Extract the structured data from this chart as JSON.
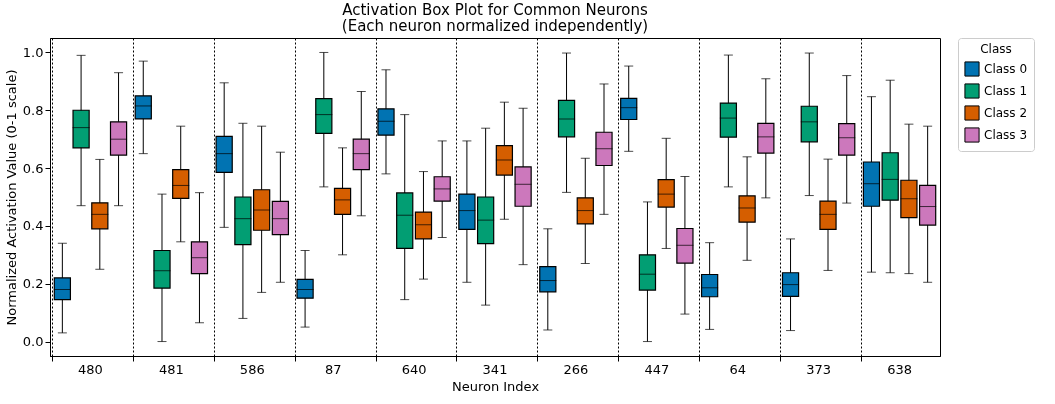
{
  "chart_data": {
    "type": "box",
    "title": "Activation Box Plot for Common Neurons",
    "subtitle": "(Each neuron normalized independently)",
    "xlabel": "Neuron Index",
    "ylabel": "Normalized Activation Value (0-1 scale)",
    "legend_title": "Class",
    "legend": "top right",
    "grid": "x",
    "ylim": [
      -0.05,
      1.05
    ],
    "yticks": [
      {
        "value": 0,
        "label": "0.0"
      },
      0.2,
      0.4,
      0.6,
      0.8,
      {
        "value": 1,
        "label": "1.0"
      }
    ],
    "categories": [
      "480",
      "481",
      "586",
      "87",
      "640",
      "341",
      "266",
      "447",
      "64",
      "373",
      "638"
    ],
    "series": [
      {
        "name": "Class 0",
        "color": "#0173b2",
        "boxes": [
          {
            "low": 0.03,
            "q1": 0.145,
            "median": 0.18,
            "q3": 0.22,
            "high": 0.34
          },
          {
            "low": 0.65,
            "q1": 0.77,
            "median": 0.815,
            "q3": 0.85,
            "high": 0.97
          },
          {
            "low": 0.395,
            "q1": 0.585,
            "median": 0.65,
            "q3": 0.71,
            "high": 0.895
          },
          {
            "low": 0.05,
            "q1": 0.15,
            "median": 0.18,
            "q3": 0.215,
            "high": 0.315
          },
          {
            "low": 0.58,
            "q1": 0.714,
            "median": 0.762,
            "q3": 0.805,
            "high": 0.94
          },
          {
            "low": 0.205,
            "q1": 0.388,
            "median": 0.453,
            "q3": 0.51,
            "high": 0.694
          },
          {
            "low": 0.04,
            "q1": 0.172,
            "median": 0.211,
            "q3": 0.259,
            "high": 0.39
          },
          {
            "low": 0.658,
            "q1": 0.768,
            "median": 0.809,
            "q3": 0.841,
            "high": 0.953
          },
          {
            "low": 0.042,
            "q1": 0.155,
            "median": 0.186,
            "q3": 0.232,
            "high": 0.342
          },
          {
            "low": 0.038,
            "q1": 0.156,
            "median": 0.197,
            "q3": 0.238,
            "high": 0.355
          },
          {
            "low": 0.24,
            "q1": 0.468,
            "median": 0.546,
            "q3": 0.621,
            "high": 0.847
          }
        ]
      },
      {
        "name": "Class 1",
        "color": "#029e73",
        "boxes": [
          {
            "low": 0.47,
            "q1": 0.67,
            "median": 0.74,
            "q3": 0.8,
            "high": 0.99
          },
          {
            "low": 0.0,
            "q1": 0.185,
            "median": 0.245,
            "q3": 0.315,
            "high": 0.51
          },
          {
            "low": 0.08,
            "q1": 0.335,
            "median": 0.425,
            "q3": 0.5,
            "high": 0.755
          },
          {
            "low": 0.535,
            "q1": 0.72,
            "median": 0.785,
            "q3": 0.84,
            "high": 1.0
          },
          {
            "low": 0.145,
            "q1": 0.322,
            "median": 0.437,
            "q3": 0.514,
            "high": 0.785
          },
          {
            "low": 0.126,
            "q1": 0.339,
            "median": 0.42,
            "q3": 0.5,
            "high": 0.738
          },
          {
            "low": 0.516,
            "q1": 0.708,
            "median": 0.77,
            "q3": 0.834,
            "high": 0.998
          },
          {
            "low": 0.0,
            "q1": 0.178,
            "median": 0.233,
            "q3": 0.3,
            "high": 0.483
          },
          {
            "low": 0.535,
            "q1": 0.707,
            "median": 0.773,
            "q3": 0.825,
            "high": 0.991
          },
          {
            "low": 0.505,
            "q1": 0.691,
            "median": 0.76,
            "q3": 0.814,
            "high": 0.998
          },
          {
            "low": 0.238,
            "q1": 0.489,
            "median": 0.561,
            "q3": 0.653,
            "high": 0.904
          }
        ]
      },
      {
        "name": "Class 2",
        "color": "#d55e00",
        "boxes": [
          {
            "low": 0.25,
            "q1": 0.39,
            "median": 0.44,
            "q3": 0.48,
            "high": 0.63
          },
          {
            "low": 0.345,
            "q1": 0.495,
            "median": 0.54,
            "q3": 0.595,
            "high": 0.745
          },
          {
            "low": 0.17,
            "q1": 0.385,
            "median": 0.455,
            "q3": 0.525,
            "high": 0.745
          },
          {
            "low": 0.3,
            "q1": 0.44,
            "median": 0.49,
            "q3": 0.53,
            "high": 0.67
          },
          {
            "low": 0.216,
            "q1": 0.355,
            "median": 0.404,
            "q3": 0.448,
            "high": 0.588
          },
          {
            "low": 0.423,
            "q1": 0.576,
            "median": 0.628,
            "q3": 0.678,
            "high": 0.828
          },
          {
            "low": 0.27,
            "q1": 0.407,
            "median": 0.453,
            "q3": 0.497,
            "high": 0.634
          },
          {
            "low": 0.322,
            "q1": 0.465,
            "median": 0.51,
            "q3": 0.56,
            "high": 0.703
          },
          {
            "low": 0.281,
            "q1": 0.413,
            "median": 0.462,
            "q3": 0.504,
            "high": 0.639
          },
          {
            "low": 0.246,
            "q1": 0.388,
            "median": 0.44,
            "q3": 0.486,
            "high": 0.631
          },
          {
            "low": 0.235,
            "q1": 0.429,
            "median": 0.494,
            "q3": 0.558,
            "high": 0.752
          }
        ]
      },
      {
        "name": "Class 3",
        "color": "#cc78bc",
        "boxes": [
          {
            "low": 0.47,
            "q1": 0.645,
            "median": 0.7,
            "q3": 0.76,
            "high": 0.93
          },
          {
            "low": 0.065,
            "q1": 0.235,
            "median": 0.29,
            "q3": 0.345,
            "high": 0.515
          },
          {
            "low": 0.205,
            "q1": 0.37,
            "median": 0.425,
            "q3": 0.485,
            "high": 0.655
          },
          {
            "low": 0.435,
            "q1": 0.595,
            "median": 0.65,
            "q3": 0.7,
            "high": 0.865
          },
          {
            "low": 0.36,
            "q1": 0.486,
            "median": 0.528,
            "q3": 0.57,
            "high": 0.694
          },
          {
            "low": 0.266,
            "q1": 0.468,
            "median": 0.544,
            "q3": 0.604,
            "high": 0.807
          },
          {
            "low": 0.44,
            "q1": 0.609,
            "median": 0.667,
            "q3": 0.724,
            "high": 0.891
          },
          {
            "low": 0.095,
            "q1": 0.271,
            "median": 0.333,
            "q3": 0.391,
            "high": 0.571
          },
          {
            "low": 0.497,
            "q1": 0.652,
            "median": 0.708,
            "q3": 0.755,
            "high": 0.909
          },
          {
            "low": 0.479,
            "q1": 0.645,
            "median": 0.705,
            "q3": 0.754,
            "high": 0.92
          },
          {
            "low": 0.205,
            "q1": 0.403,
            "median": 0.467,
            "q3": 0.54,
            "high": 0.745
          }
        ]
      }
    ]
  }
}
